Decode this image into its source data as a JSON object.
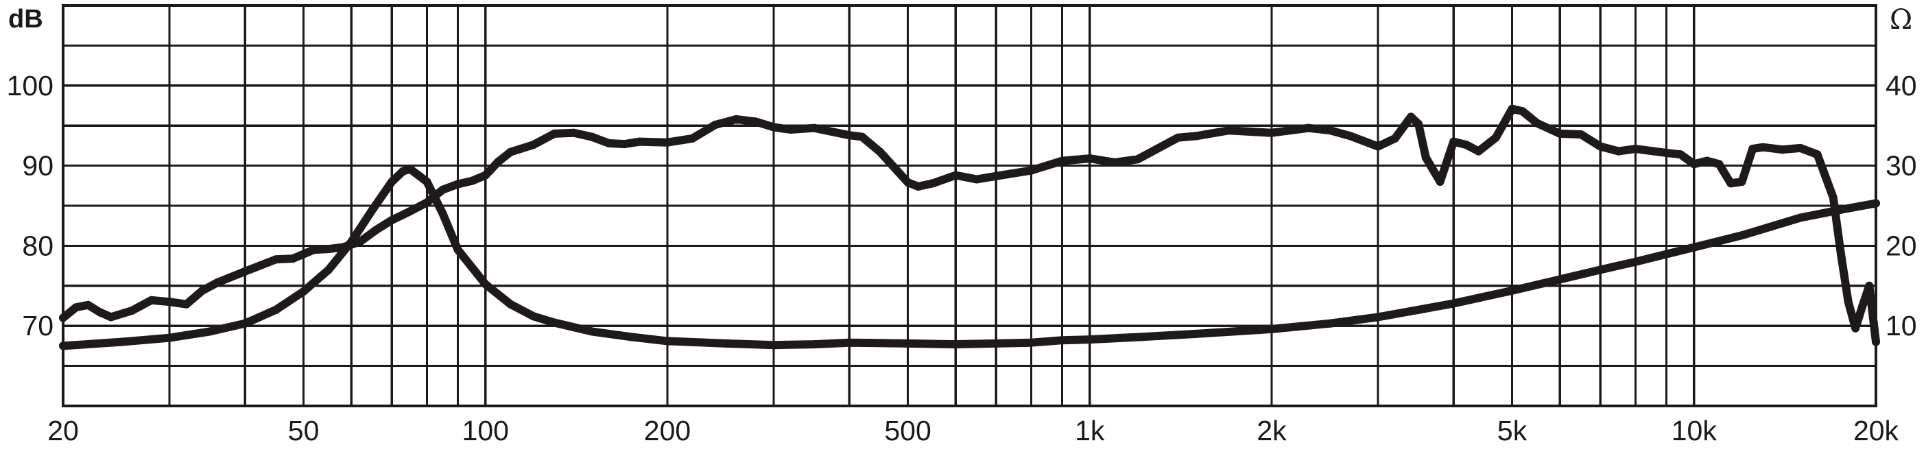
{
  "chart_data": {
    "type": "line",
    "title": "",
    "x_scale": "log",
    "xlim": [
      20,
      20000
    ],
    "x_ticks": [
      {
        "value": 20,
        "label": "20"
      },
      {
        "value": 50,
        "label": "50"
      },
      {
        "value": 100,
        "label": "100"
      },
      {
        "value": 200,
        "label": "200"
      },
      {
        "value": 500,
        "label": "500"
      },
      {
        "value": 1000,
        "label": "1k"
      },
      {
        "value": 2000,
        "label": "2k"
      },
      {
        "value": 5000,
        "label": "5k"
      },
      {
        "value": 10000,
        "label": "10k"
      },
      {
        "value": 20000,
        "label": "20k"
      }
    ],
    "y_left": {
      "unit": "dB",
      "lim": [
        60,
        110
      ],
      "ticks": [
        {
          "value": 70,
          "label": "70"
        },
        {
          "value": 80,
          "label": "80"
        },
        {
          "value": 90,
          "label": "90"
        },
        {
          "value": 100,
          "label": "100"
        }
      ]
    },
    "y_right": {
      "unit": "Ω",
      "lim": [
        0,
        50
      ],
      "ticks": [
        {
          "value": 10,
          "label": "10"
        },
        {
          "value": 20,
          "label": "20"
        },
        {
          "value": 30,
          "label": "30"
        },
        {
          "value": 40,
          "label": "40"
        }
      ]
    },
    "grid": true,
    "series": [
      {
        "axis": "left",
        "x": [
          20,
          21,
          22,
          23,
          24,
          26,
          28,
          30,
          32,
          34,
          36,
          40,
          45,
          48,
          52,
          55,
          58,
          62,
          66,
          70,
          75,
          80,
          85,
          90,
          95,
          100,
          105,
          110,
          120,
          130,
          140,
          150,
          160,
          170,
          180,
          200,
          220,
          240,
          260,
          280,
          300,
          320,
          350,
          400,
          420,
          450,
          500,
          520,
          550,
          600,
          650,
          700,
          800,
          900,
          1000,
          1100,
          1200,
          1400,
          1500,
          1700,
          2000,
          2300,
          2500,
          2700,
          3000,
          3200,
          3400,
          3500,
          3600,
          3800,
          4000,
          4200,
          4400,
          4700,
          5000,
          5200,
          5500,
          6000,
          6500,
          7000,
          7500,
          8000,
          9000,
          9500,
          10000,
          10500,
          11000,
          11500,
          12000,
          12500,
          13000,
          14000,
          15000,
          16000,
          17000,
          17500,
          18000,
          18500,
          19000,
          19500,
          20000
        ],
        "y": [
          71.0,
          72.3,
          72.6,
          71.7,
          71.1,
          71.9,
          73.2,
          73.0,
          72.7,
          74.4,
          75.4,
          76.8,
          78.3,
          78.4,
          79.5,
          79.6,
          79.8,
          80.5,
          82.0,
          83.2,
          84.3,
          85.4,
          87.0,
          87.7,
          88.1,
          88.8,
          90.5,
          91.7,
          92.6,
          94.0,
          94.1,
          93.6,
          92.8,
          92.7,
          93.0,
          92.9,
          93.4,
          95.1,
          95.8,
          95.5,
          94.8,
          94.5,
          94.7,
          93.8,
          93.6,
          91.7,
          87.9,
          87.4,
          87.8,
          88.8,
          88.3,
          88.7,
          89.4,
          90.6,
          90.9,
          90.4,
          90.8,
          93.5,
          93.7,
          94.4,
          94.1,
          94.7,
          94.4,
          93.7,
          92.4,
          93.4,
          96.1,
          95.2,
          91.0,
          88.0,
          93.0,
          92.6,
          91.8,
          93.5,
          97.1,
          96.8,
          95.3,
          94.0,
          93.9,
          92.4,
          91.8,
          92.1,
          91.6,
          91.4,
          90.2,
          90.6,
          90.2,
          87.8,
          88.0,
          92.1,
          92.3,
          92.0,
          92.2,
          91.4,
          86.0,
          79.0,
          73.0,
          69.7,
          72.5,
          75.0,
          68.0
        ]
      },
      {
        "axis": "right",
        "x": [
          20,
          25,
          30,
          35,
          40,
          45,
          50,
          55,
          60,
          65,
          70,
          73,
          75,
          80,
          85,
          90,
          100,
          110,
          120,
          130,
          150,
          175,
          200,
          250,
          300,
          350,
          400,
          500,
          600,
          700,
          800,
          900,
          1000,
          1200,
          1500,
          2000,
          2500,
          3000,
          3500,
          4000,
          5000,
          6000,
          7000,
          8000,
          10000,
          12000,
          15000,
          17500,
          20000
        ],
        "y": [
          7.5,
          8.0,
          8.5,
          9.3,
          10.3,
          12.0,
          14.3,
          17.0,
          20.5,
          24.5,
          28.0,
          29.3,
          29.6,
          28.0,
          24.0,
          19.5,
          15.2,
          12.7,
          11.2,
          10.4,
          9.3,
          8.6,
          8.1,
          7.8,
          7.6,
          7.7,
          7.9,
          7.8,
          7.7,
          7.8,
          7.9,
          8.2,
          8.3,
          8.6,
          9.0,
          9.6,
          10.3,
          11.1,
          12.0,
          12.8,
          14.4,
          15.8,
          17.0,
          18.0,
          19.8,
          21.3,
          23.5,
          24.5,
          25.3
        ]
      }
    ]
  }
}
